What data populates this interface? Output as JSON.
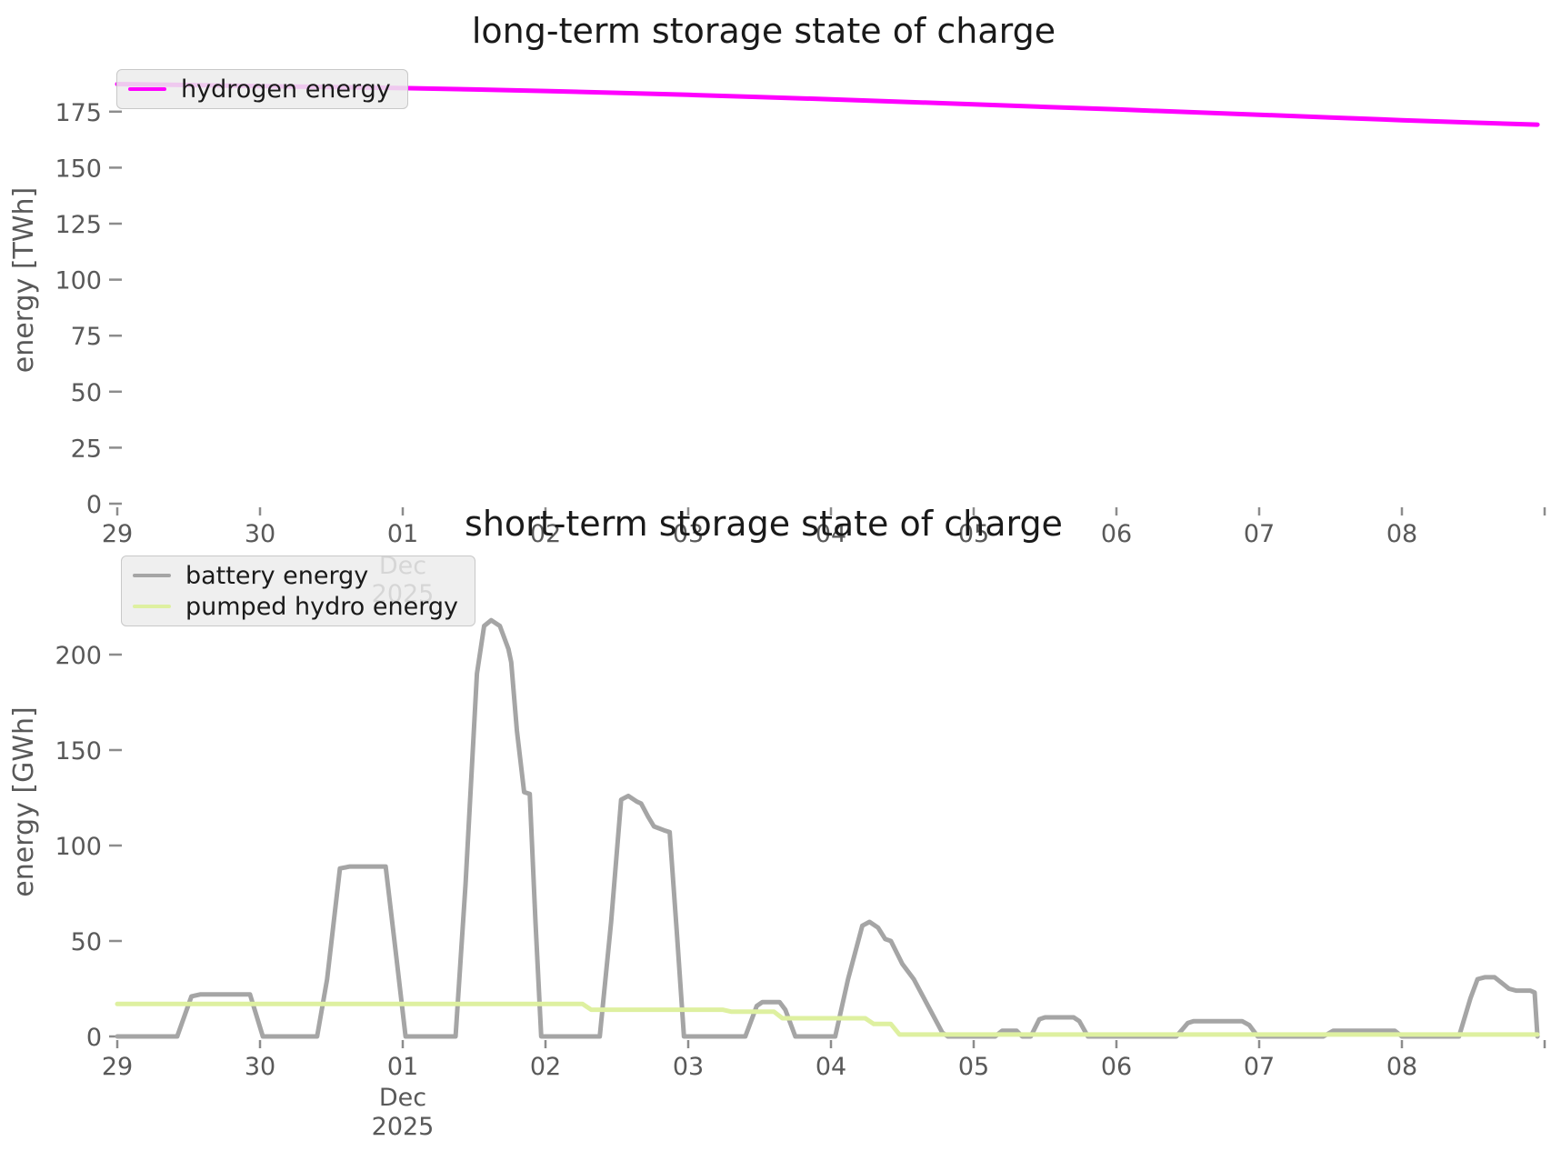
{
  "figure": {
    "background": "#ffffff",
    "tick_color": "#595959",
    "title_color": "#1a1a1a"
  },
  "chart_data": [
    {
      "type": "line",
      "title": "long-term storage state of charge",
      "xlabel": "",
      "ylabel": "energy [TWh]",
      "x_tick_labels": [
        "29",
        "30",
        "01",
        "02",
        "03",
        "04",
        "05",
        "06",
        "07",
        "08"
      ],
      "x_month_label": "Dec",
      "x_year_label": "2025",
      "y_ticks": [
        0,
        25,
        50,
        75,
        100,
        125,
        150,
        175
      ],
      "ylim": [
        0,
        200
      ],
      "grid": false,
      "legend_position": "upper-left",
      "series": [
        {
          "name": "hydrogen energy",
          "color": "#ff00ff",
          "x": [
            0,
            0.5,
            1,
            1.5,
            2,
            2.5,
            3,
            3.5,
            4,
            4.5,
            5,
            5.5,
            6,
            6.5,
            7,
            7.5,
            8,
            8.5,
            9,
            9.5,
            9.95
          ],
          "values": [
            187.3,
            186.9,
            186.4,
            186.0,
            185.5,
            184.9,
            184.2,
            183.4,
            182.5,
            181.5,
            180.5,
            179.4,
            178.3,
            177.1,
            176.0,
            174.8,
            173.6,
            172.4,
            171.2,
            170.1,
            169.2
          ]
        }
      ]
    },
    {
      "type": "line",
      "title": "short-term storage state of charge",
      "xlabel": "",
      "ylabel": "energy [GWh]",
      "x_tick_labels": [
        "29",
        "30",
        "01",
        "02",
        "03",
        "04",
        "05",
        "06",
        "07",
        "08"
      ],
      "x_month_label": "Dec",
      "x_year_label": "2025",
      "y_ticks": [
        0,
        50,
        100,
        150,
        200
      ],
      "ylim": [
        0,
        250
      ],
      "grid": false,
      "legend_position": "upper-left",
      "series": [
        {
          "name": "battery energy",
          "color": "#a5a5a5",
          "x": [
            0,
            0.42,
            0.52,
            0.58,
            0.93,
            1.02,
            1.4,
            1.47,
            1.56,
            1.63,
            1.88,
            1.95,
            2.02,
            2.37,
            2.44,
            2.52,
            2.57,
            2.62,
            2.68,
            2.74,
            2.76,
            2.8,
            2.85,
            2.89,
            2.93,
            2.97,
            3.38,
            3.46,
            3.53,
            3.58,
            3.64,
            3.67,
            3.72,
            3.76,
            3.83,
            3.87,
            3.92,
            3.97,
            4.4,
            4.48,
            4.52,
            4.64,
            4.68,
            4.75,
            5.03,
            5.12,
            5.22,
            5.27,
            5.33,
            5.38,
            5.42,
            5.5,
            5.58,
            5.68,
            5.78,
            5.82,
            6.15,
            6.2,
            6.3,
            6.34,
            6.4,
            6.46,
            6.5,
            6.7,
            6.74,
            6.8,
            7.42,
            7.5,
            7.54,
            7.88,
            7.93,
            7.99,
            8.45,
            8.52,
            8.95,
            9.0,
            9.4,
            9.48,
            9.53,
            9.58,
            9.65,
            9.7,
            9.75,
            9.8,
            9.9,
            9.93,
            9.95
          ],
          "values": [
            0,
            0,
            21,
            22,
            22,
            0,
            0,
            30,
            88,
            89,
            89,
            45,
            0,
            0,
            80,
            190,
            215,
            218,
            215,
            203,
            196,
            160,
            128,
            127,
            60,
            0,
            0,
            60,
            124,
            126,
            123,
            122,
            115,
            110,
            108,
            107,
            55,
            0,
            0,
            16,
            18,
            18,
            14,
            0,
            0,
            30,
            58,
            60,
            57,
            51,
            50,
            38,
            30,
            16,
            2,
            0,
            0,
            3,
            3,
            0,
            0,
            9,
            10,
            10,
            8,
            0,
            0,
            7,
            8,
            8,
            6,
            0,
            0,
            3,
            3,
            0,
            0,
            20,
            30,
            31,
            31,
            28,
            25,
            24,
            24,
            23,
            0
          ]
        },
        {
          "name": "pumped hydro energy",
          "color": "#def0a0",
          "x": [
            0,
            3.26,
            3.32,
            4.24,
            4.3,
            4.6,
            4.66,
            5.24,
            5.3,
            5.42,
            5.48,
            9.95
          ],
          "values": [
            17,
            17,
            14,
            14,
            13,
            13,
            9.5,
            9.5,
            6.5,
            6.5,
            1,
            1
          ]
        }
      ]
    }
  ]
}
